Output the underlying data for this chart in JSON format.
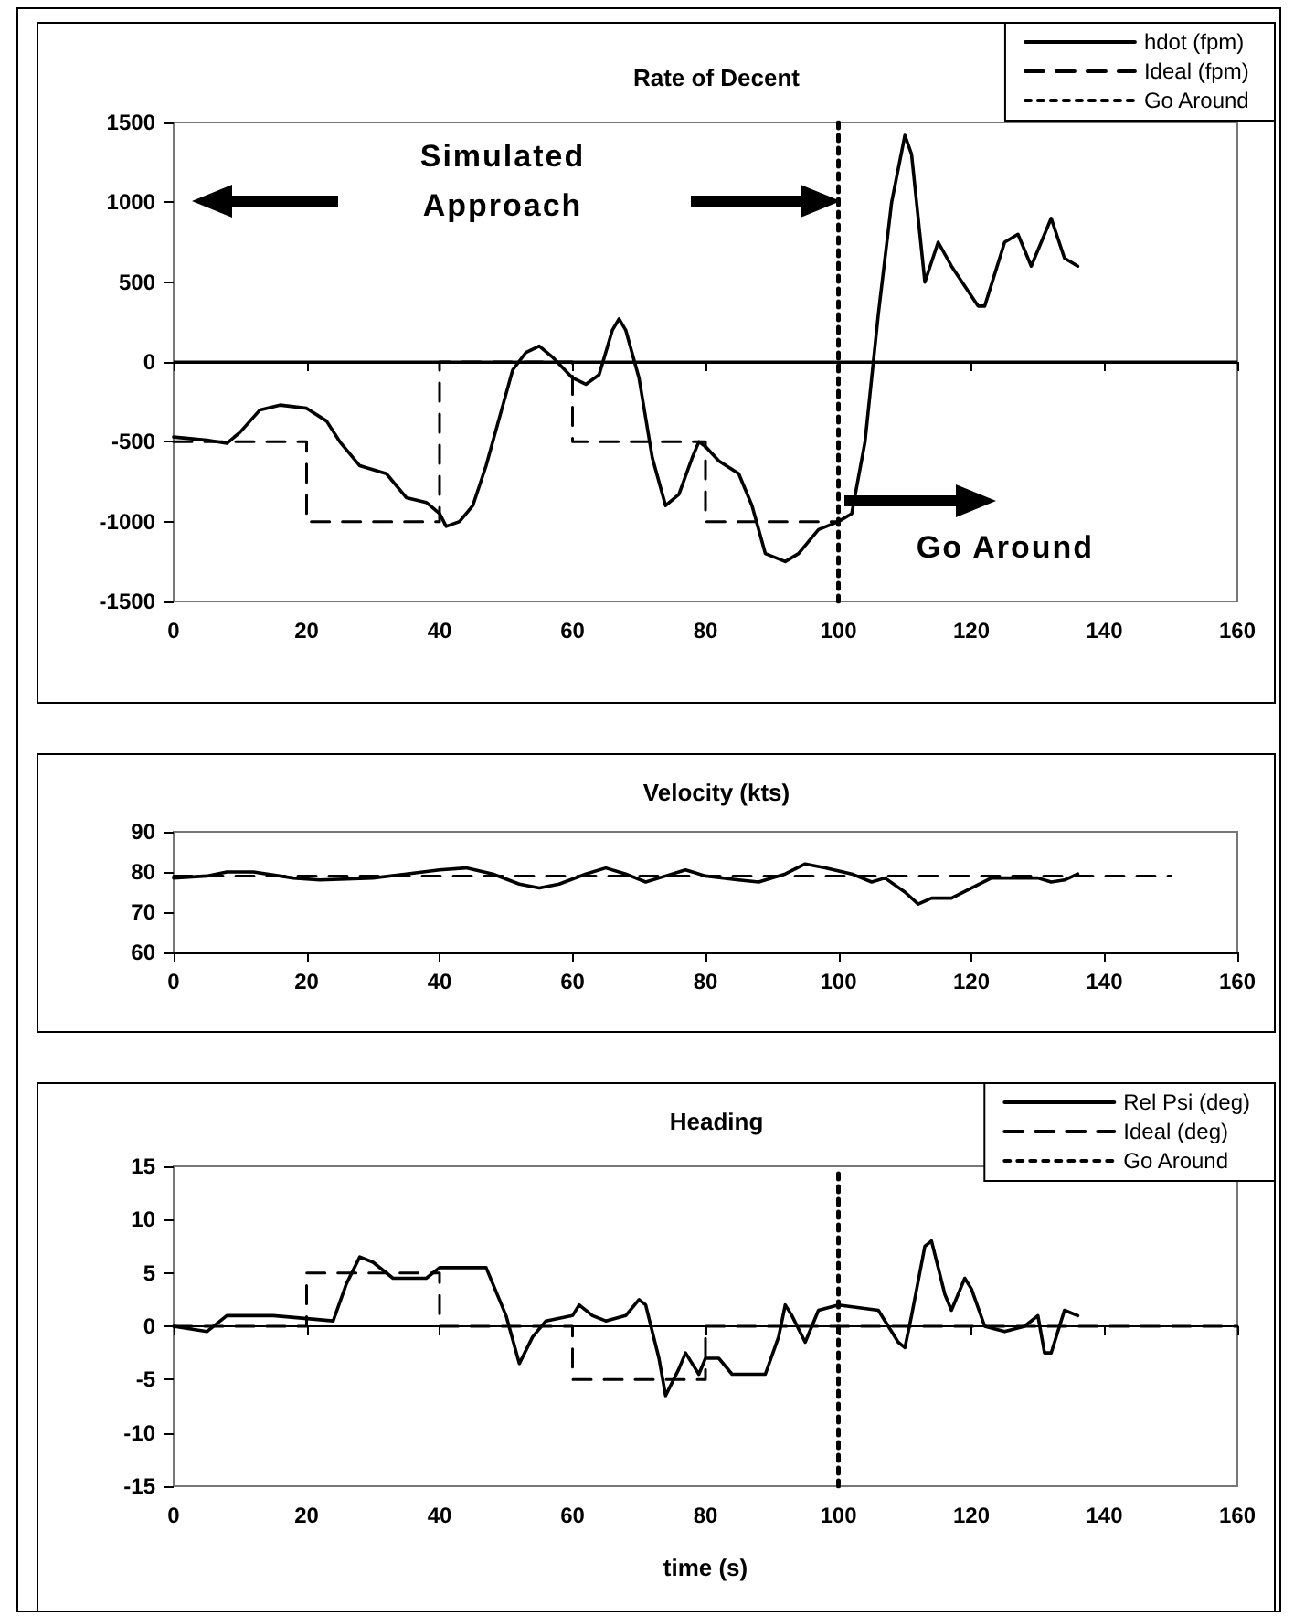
{
  "chart_data": [
    {
      "type": "line",
      "title": "Rate of Decent",
      "xlim": [
        0,
        160
      ],
      "xticks": [
        0,
        20,
        40,
        60,
        80,
        100,
        120,
        140,
        160
      ],
      "ylim": [
        -1500,
        1500
      ],
      "yticks": [
        -1500,
        -1000,
        -500,
        0,
        500,
        1000,
        1500
      ],
      "grid": false,
      "legend": "top right",
      "annotations": [
        "Simulated Approach",
        "Go Around"
      ],
      "ref_lines": [
        {
          "axis": "y",
          "value": 0,
          "color": "#000000"
        }
      ],
      "series": [
        {
          "name": "hdot (fpm)",
          "color": "#000000",
          "line_style": "solid",
          "x": [
            0,
            5,
            8,
            10,
            13,
            16,
            20,
            23,
            25,
            28,
            32,
            35,
            38,
            40,
            41,
            43,
            45,
            47,
            49,
            51,
            53,
            55,
            57,
            60,
            62,
            64,
            66,
            67,
            68,
            70,
            72,
            74,
            76,
            78,
            79,
            80,
            82,
            85,
            87,
            89,
            92,
            94,
            97,
            100,
            102,
            104,
            106,
            108,
            110,
            111,
            113,
            115,
            117,
            121,
            122,
            125,
            127,
            129,
            132,
            134,
            136
          ],
          "values": [
            -470,
            -490,
            -510,
            -440,
            -300,
            -270,
            -290,
            -370,
            -500,
            -650,
            -700,
            -850,
            -880,
            -950,
            -1030,
            -1000,
            -900,
            -650,
            -350,
            -50,
            60,
            100,
            30,
            -100,
            -140,
            -80,
            200,
            270,
            200,
            -100,
            -600,
            -900,
            -830,
            -600,
            -500,
            -530,
            -620,
            -700,
            -900,
            -1200,
            -1250,
            -1200,
            -1050,
            -1000,
            -950,
            -500,
            300,
            1000,
            1420,
            1300,
            500,
            750,
            600,
            350,
            350,
            750,
            800,
            600,
            900,
            650,
            600
          ]
        },
        {
          "name": "Ideal (fpm)",
          "color": "#000000",
          "line_style": "dashed",
          "x": [
            0,
            20,
            20,
            40,
            40,
            60,
            60,
            80,
            80,
            100
          ],
          "values": [
            -500,
            -500,
            -1000,
            -1000,
            0,
            0,
            -500,
            -500,
            -1000,
            -1000
          ]
        },
        {
          "name": "Go Around",
          "color": "#000000",
          "line_style": "dotted",
          "x": [
            100,
            100
          ],
          "values": [
            -1500,
            1500
          ]
        }
      ]
    },
    {
      "type": "line",
      "title": "Velocity (kts)",
      "xlim": [
        0,
        160
      ],
      "xticks": [
        0,
        20,
        40,
        60,
        80,
        100,
        120,
        140,
        160
      ],
      "ylim": [
        60,
        90
      ],
      "yticks": [
        60,
        70,
        80,
        90
      ],
      "grid": false,
      "legend": false,
      "series": [
        {
          "color": "#000000",
          "line_style": "solid",
          "x": [
            0,
            5,
            8,
            12,
            18,
            22,
            30,
            35,
            40,
            44,
            48,
            52,
            55,
            58,
            62,
            65,
            68,
            71,
            74,
            77,
            80,
            85,
            88,
            92,
            95,
            98,
            102,
            105,
            107,
            110,
            112,
            114,
            117,
            120,
            123,
            130,
            132,
            134,
            136
          ],
          "values": [
            78.5,
            79,
            80,
            80,
            78.5,
            78,
            78.5,
            79.5,
            80.5,
            81,
            79.5,
            77,
            76,
            77,
            79.5,
            81,
            79.5,
            77.5,
            79,
            80.5,
            79,
            78,
            77.5,
            79.5,
            82,
            81,
            79.5,
            77.5,
            78.5,
            75,
            72,
            73.5,
            73.5,
            76,
            78.5,
            78.5,
            77.5,
            78,
            79.5
          ]
        },
        {
          "color": "#000000",
          "line_style": "dashed",
          "x": [
            0,
            150
          ],
          "values": [
            79,
            79
          ]
        }
      ]
    },
    {
      "type": "line",
      "title": "Heading",
      "xlabel": "time (s)",
      "xlim": [
        0,
        160
      ],
      "xticks": [
        0,
        20,
        40,
        60,
        80,
        100,
        120,
        140,
        160
      ],
      "ylim": [
        -15,
        15
      ],
      "yticks": [
        -15,
        -10,
        -5,
        0,
        5,
        10,
        15
      ],
      "grid": false,
      "legend": "top right",
      "series": [
        {
          "name": "Rel Psi (deg)",
          "color": "#000000",
          "line_style": "solid",
          "x": [
            0,
            5,
            8,
            15,
            24,
            26,
            28,
            30,
            33,
            38,
            40,
            47,
            50,
            52,
            54,
            56,
            60,
            61,
            63,
            65,
            68,
            70,
            71,
            73,
            74,
            76,
            77,
            79,
            80,
            82,
            84,
            89,
            91,
            92,
            93,
            95,
            97,
            100,
            106,
            109,
            110,
            111,
            113,
            114,
            116,
            117,
            119,
            120,
            122,
            125,
            128,
            130,
            131,
            132,
            134,
            136
          ],
          "values": [
            0,
            -0.5,
            1,
            1,
            0.5,
            4,
            6.5,
            6,
            4.5,
            4.5,
            5.5,
            5.5,
            1,
            -3.5,
            -1,
            0.5,
            1,
            2,
            1,
            0.5,
            1,
            2.5,
            2,
            -3,
            -6.5,
            -4,
            -2.5,
            -4.5,
            -3,
            -3,
            -4.5,
            -4.5,
            -1,
            2,
            1,
            -1.5,
            1.5,
            2,
            1.5,
            -1.5,
            -2,
            1,
            7.5,
            8,
            3,
            1.5,
            4.5,
            3.5,
            0,
            -0.5,
            0,
            1,
            -2.5,
            -2.5,
            1.5,
            1
          ]
        },
        {
          "name": "Ideal (deg)",
          "color": "#000000",
          "line_style": "dashed",
          "x": [
            0,
            20,
            20,
            40,
            40,
            60,
            60,
            80,
            80,
            160
          ],
          "values": [
            0,
            0,
            5,
            5,
            0,
            0,
            -5,
            -5,
            0,
            0
          ]
        },
        {
          "name": "Go Around",
          "color": "#000000",
          "line_style": "dotted",
          "x": [
            100,
            100
          ],
          "values": [
            -15,
            15
          ]
        }
      ]
    }
  ]
}
